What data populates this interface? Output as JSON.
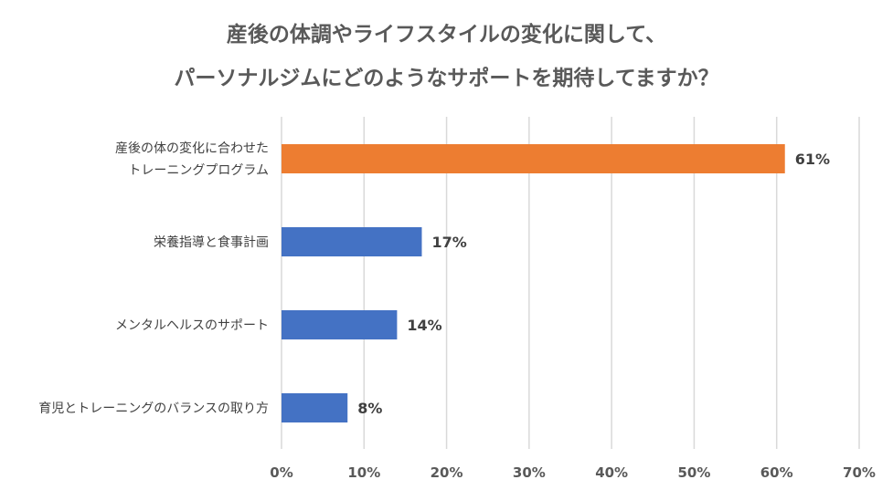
{
  "chart_data": {
    "type": "bar",
    "orientation": "horizontal",
    "title_lines": [
      "産後の体調やライフスタイルの変化に関して、",
      "パーソナルジムにどのようなサポートを期待してますか？"
    ],
    "categories": [
      [
        "産後の体の変化に合わせた",
        "トレーニングプログラム"
      ],
      [
        "栄養指導と食事計画"
      ],
      [
        "メンタルヘルスのサポート"
      ],
      [
        "育児とトレーニングのバランスの取り方"
      ]
    ],
    "values": [
      61,
      17,
      14,
      8
    ],
    "value_labels": [
      "61%",
      "17%",
      "14%",
      "8%"
    ],
    "bar_colors": [
      "#ED7D31",
      "#4472C4",
      "#4472C4",
      "#4472C4"
    ],
    "xlim": [
      0,
      70
    ],
    "xticks": [
      0,
      10,
      20,
      30,
      40,
      50,
      60,
      70
    ],
    "xtick_labels": [
      "0%",
      "10%",
      "20%",
      "30%",
      "40%",
      "50%",
      "60%",
      "70%"
    ],
    "grid": true,
    "gridline_color": "#D9D9D9",
    "legend": "none"
  }
}
